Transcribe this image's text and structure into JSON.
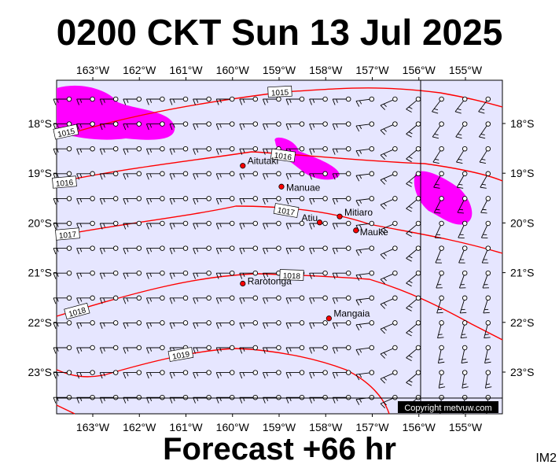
{
  "title": "0200 CKT Sun 13 Jul 2025",
  "subtitle": "Forecast +66 hr",
  "image_code": "IM2",
  "copyright": "Copyright metvuw.com",
  "lon_labels": [
    "163°W",
    "162°W",
    "161°W",
    "160°W",
    "159°W",
    "158°W",
    "157°W",
    "156°W",
    "155°W"
  ],
  "lat_labels": [
    "18°S",
    "19°S",
    "20°S",
    "21°S",
    "22°S",
    "23°S"
  ],
  "map": {
    "lon_range": [
      -163.75,
      -154.25
    ],
    "lat_range": [
      -23.8,
      -17.2
    ],
    "isobar_labels": [
      "1015",
      "1015",
      "1016",
      "1016",
      "1017",
      "1017",
      "1018",
      "1018",
      "1019"
    ],
    "places": [
      {
        "name": "Aitutaki",
        "lon": -159.78,
        "lat": -18.85
      },
      {
        "name": "Manuae",
        "lon": -158.95,
        "lat": -19.27
      },
      {
        "name": "Mitiaro",
        "lon": -157.7,
        "lat": -19.87
      },
      {
        "name": "Atiu",
        "lon": -158.13,
        "lat": -19.99
      },
      {
        "name": "Mauke",
        "lon": -157.35,
        "lat": -20.15
      },
      {
        "name": "Rarotonga",
        "lon": -159.78,
        "lat": -21.22
      },
      {
        "name": "Mangaia",
        "lon": -157.93,
        "lat": -21.92
      }
    ],
    "colors": {
      "background": "#e6e6ff",
      "isobar": "#ff0000",
      "rain": "#ff00ff",
      "marker": "#ff0000"
    }
  }
}
